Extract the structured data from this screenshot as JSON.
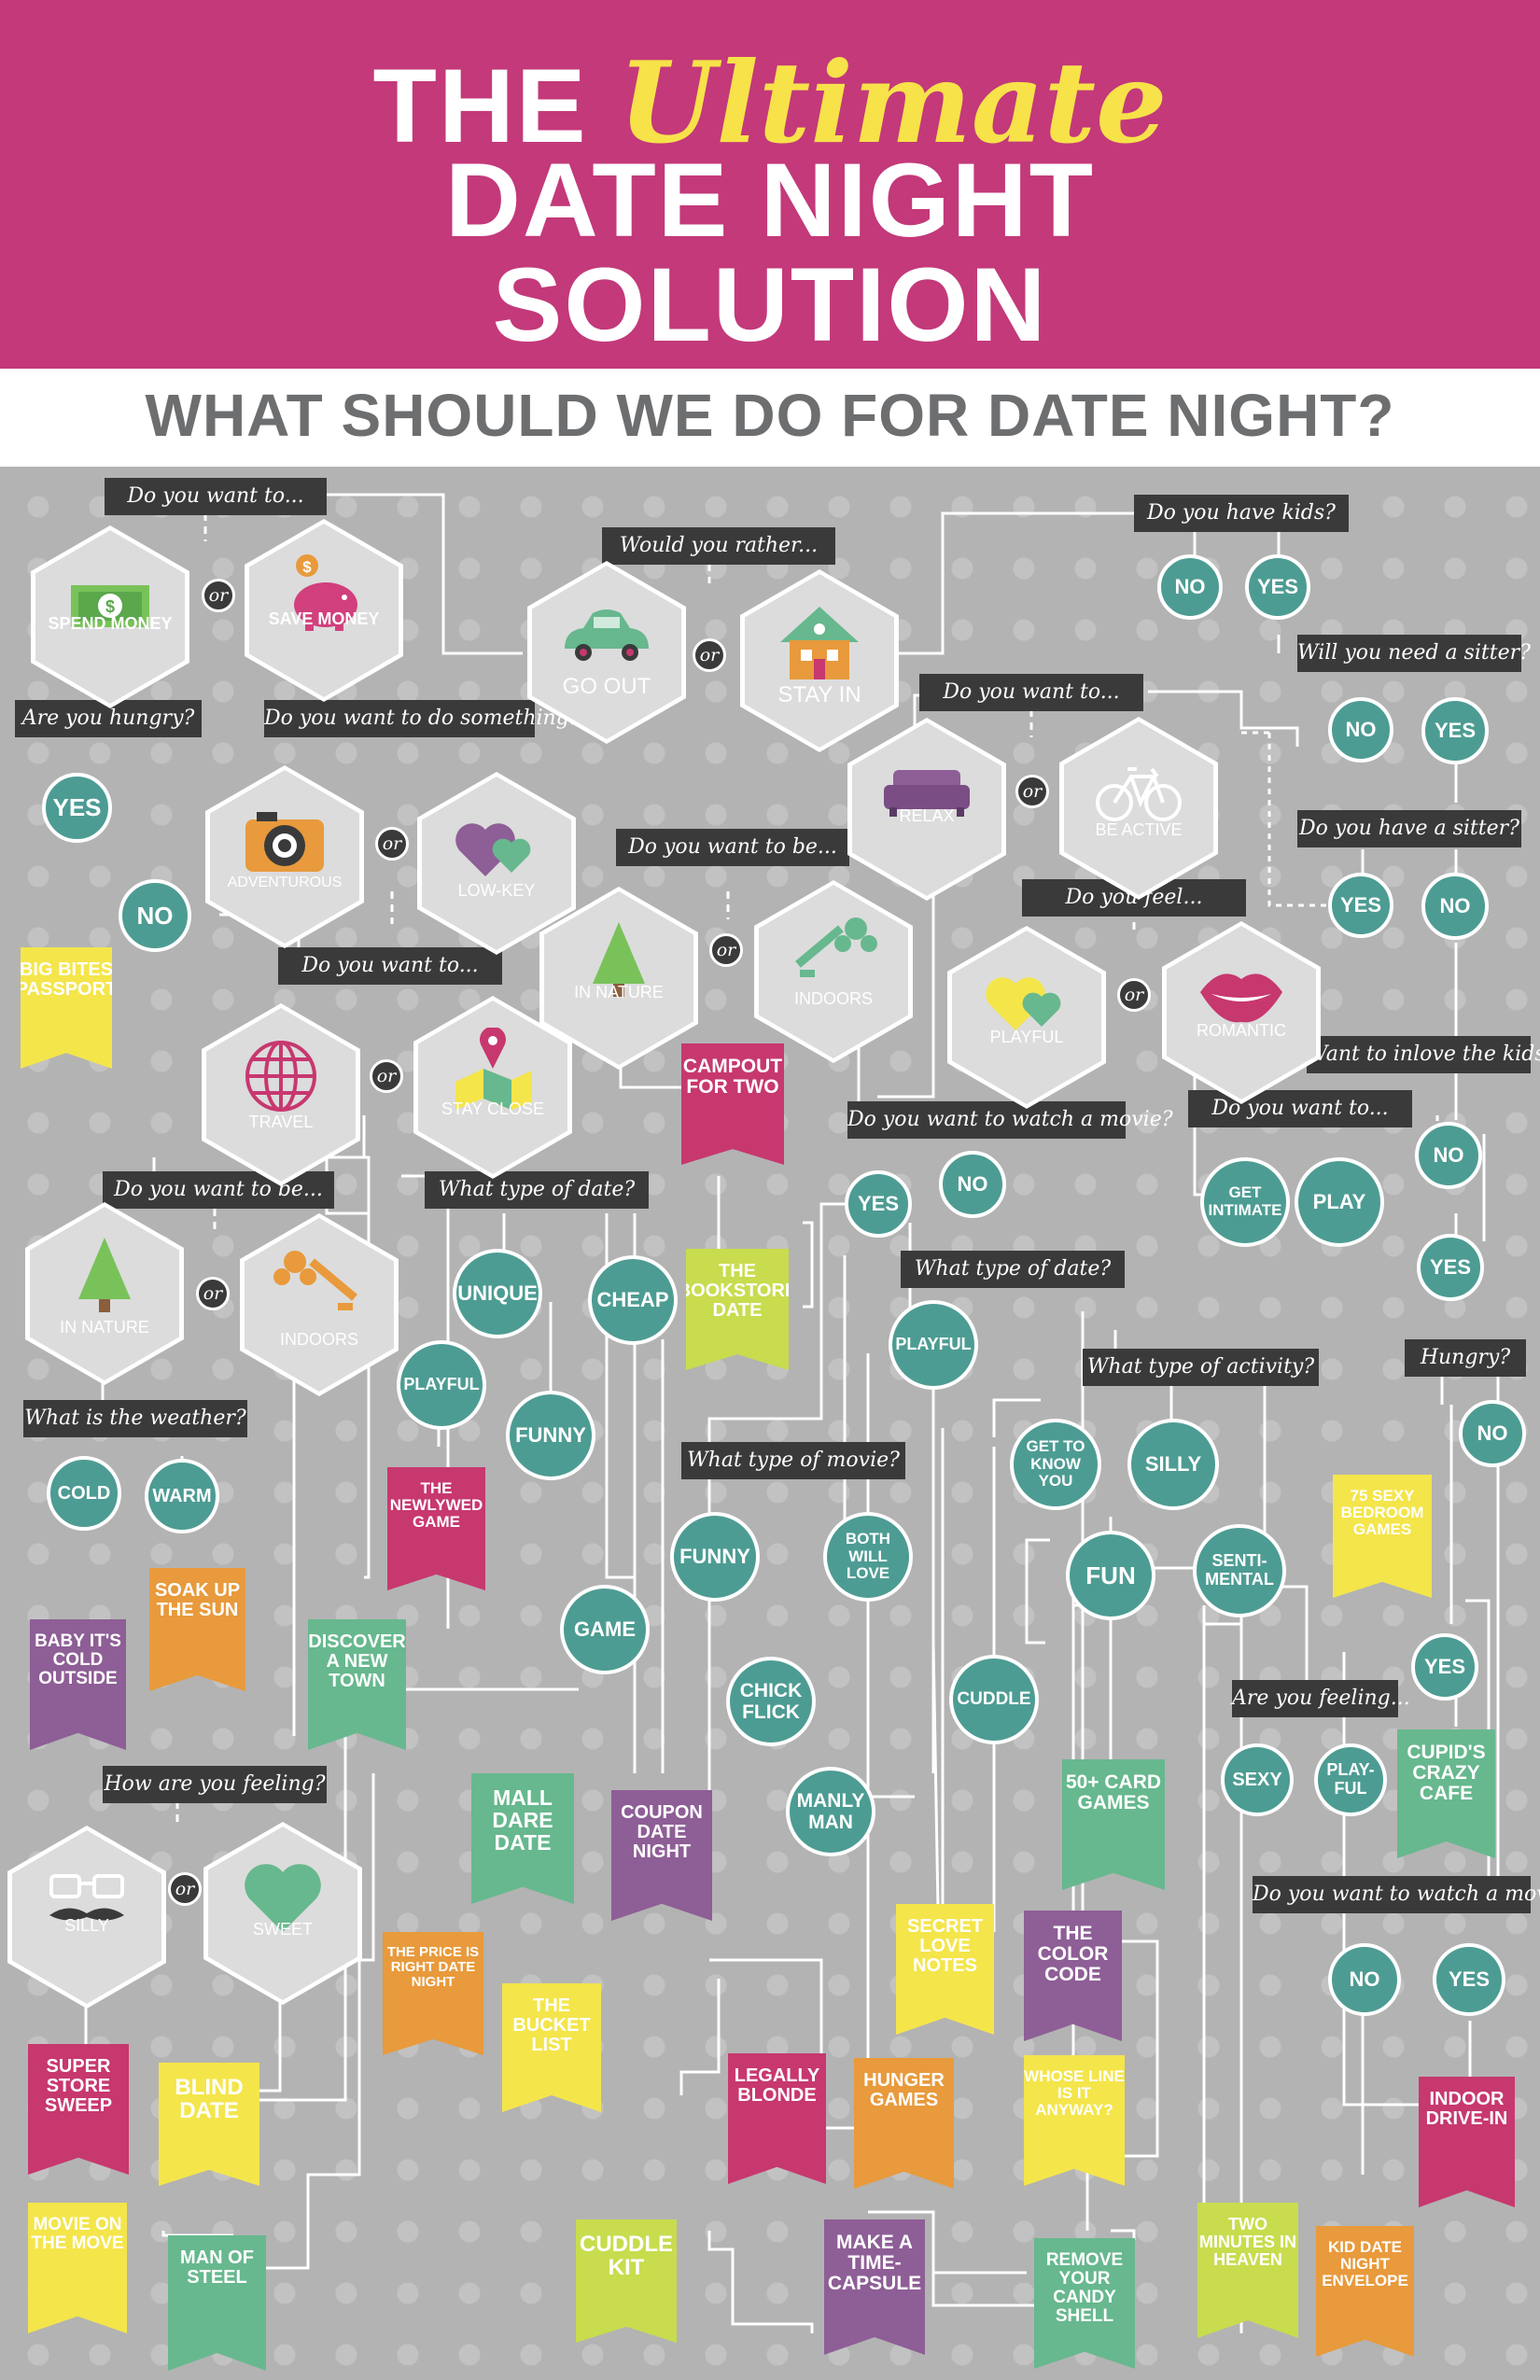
{
  "header": {
    "the": "THE",
    "ultimate": "Ultimate",
    "line2": "DATE NIGHT",
    "line3": "SOLUTION",
    "subtitle": "WHAT SHOULD WE DO FOR DATE NIGHT?"
  },
  "colors": {
    "magenta": "#c3397a",
    "yellow": "#f7e24a",
    "teal": "#4d9c93",
    "dark": "#3a3a3a",
    "gray": "#b3b3b3"
  },
  "or": "or",
  "questions": {
    "q1": "Do you want to...",
    "q2": "Would you rather...",
    "q3": "Do you have kids?",
    "q4": "Are you hungry?",
    "q5": "Do you want to do something...",
    "q6": "Do you want to...",
    "q7": "Will you need a sitter?",
    "q8": "Do you want to be...",
    "q9": "Do you have a sitter?",
    "q10": "Do you feel...",
    "q11": "Do you want to...",
    "q12": "Want to inlove the kids?",
    "q13": "Do you want to watch a movie?",
    "q14": "Do you want to...",
    "q15": "Do you want to be...",
    "q16": "What type of date?",
    "q17": "What type of date?",
    "q18": "What type of activity?",
    "q19": "Hungry?",
    "q20": "What is the weather?",
    "q21": "What type of movie?",
    "q22": "Are you feeling...",
    "q23": "How are you feeling?",
    "q24": "Do you want to watch a movie?"
  },
  "hexes": {
    "spend": "SPEND MONEY",
    "save": "SAVE MONEY",
    "go_out": "GO OUT",
    "stay_in": "STAY IN",
    "adventurous": "ADVENTUROUS",
    "low_key": "LOW-KEY",
    "relax": "RELAX",
    "be_active": "BE ACTIVE",
    "in_nature_1": "IN NATURE",
    "indoors_1": "INDOORS",
    "playful": "PLAYFUL",
    "romantic": "ROMANTIC",
    "travel": "TRAVEL",
    "stay_close": "STAY CLOSE",
    "in_nature_2": "IN NATURE",
    "indoors_2": "INDOORS",
    "silly": "SILLY",
    "sweet": "SWEET"
  },
  "circles": {
    "no": "NO",
    "yes": "YES",
    "unique": "UNIQUE",
    "cheap": "CHEAP",
    "playful": "PLAYFUL",
    "funny": "FUNNY",
    "game": "GAME",
    "cold": "COLD",
    "warm": "WARM",
    "get_intimate": "GET INTIMATE",
    "play": "PLAY",
    "get_to_know_you": "GET TO KNOW YOU",
    "silly": "SILLY",
    "fun": "FUN",
    "sentimental": "SENTI-MENTAL",
    "both_will_love": "BOTH WILL LOVE",
    "chick_flick": "CHICK FLICK",
    "manly_man": "MANLY MAN",
    "cuddle": "CUDDLE",
    "sexy": "SEXY",
    "play_ful": "PLAY-FUL"
  },
  "results": {
    "r1": "BIG BITES PASSPORT",
    "r2": "CAMPOUT FOR TWO",
    "r3": "THE BOOKSTORE DATE",
    "r4": "THE NEWLYWED GAME",
    "r5": "75 SEXY BEDROOM GAMES",
    "r6": "BABY IT'S COLD OUTSIDE",
    "r7": "SOAK UP THE SUN",
    "r8": "DISCOVER A NEW TOWN",
    "r9": "CUPID'S CRAZY CAFE",
    "r10": "MALL DARE DATE",
    "r11": "COUPON DATE NIGHT",
    "r12": "50+ CARD GAMES",
    "r13": "THE PRICE IS RIGHT DATE NIGHT",
    "r14": "THE BUCKET LIST",
    "r15": "SECRET LOVE NOTES",
    "r16": "THE COLOR CODE",
    "r17": "SUPER STORE SWEEP",
    "r18": "BLIND DATE",
    "r19": "LEGALLY BLONDE",
    "r20": "HUNGER GAMES",
    "r21": "WHOSE LINE IS IT ANYWAY?",
    "r22": "INDOOR DRIVE-IN",
    "r23": "MOVIE ON THE MOVE",
    "r24": "MAN OF STEEL",
    "r25": "CUDDLE KIT",
    "r26": "MAKE A TIME-CAPSULE",
    "r27": "REMOVE YOUR CANDY SHELL",
    "r28": "TWO MINUTES IN HEAVEN",
    "r29": "KID DATE NIGHT ENVELOPE"
  }
}
